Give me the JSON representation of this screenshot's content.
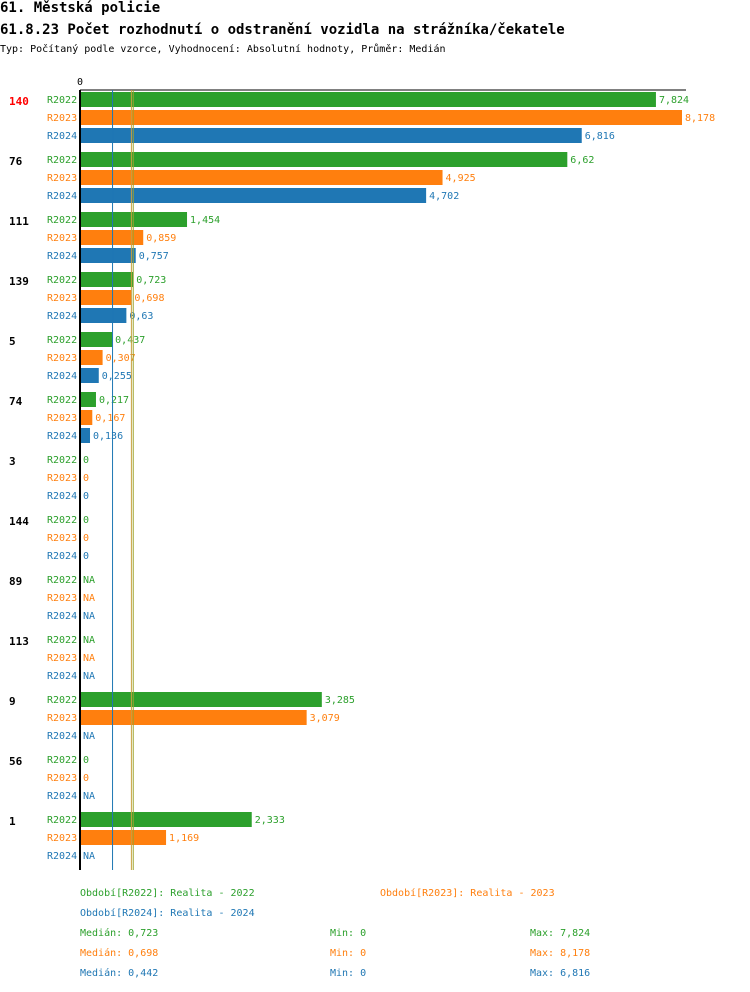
{
  "header": {
    "title": "61. Městská policie",
    "subtitle": "61.8.23 Počet rozhodnutí o odstranění vozidla na strážníka/čekatele",
    "meta": "Typ: Počítaný podle vzorce, Vyhodnocení: Absolutní hodnoty, Průměr: Medián"
  },
  "chart_data": {
    "type": "bar",
    "orientation": "horizontal",
    "xlim": [
      0,
      8.178
    ],
    "axis_zero_label": "0",
    "series": [
      {
        "key": "R2022",
        "label": "R2022",
        "color": "#2ca02c"
      },
      {
        "key": "R2023",
        "label": "R2023",
        "color": "#ff7f0e"
      },
      {
        "key": "R2024",
        "label": "R2024",
        "color": "#1f77b4"
      }
    ],
    "groups": [
      {
        "label": "140",
        "highlight": true,
        "values": [
          7.824,
          8.178,
          6.816
        ],
        "labels": [
          "7,824",
          "8,178",
          "6,816"
        ]
      },
      {
        "label": "76",
        "highlight": false,
        "values": [
          6.62,
          4.925,
          4.702
        ],
        "labels": [
          "6,62",
          "4,925",
          "4,702"
        ]
      },
      {
        "label": "111",
        "highlight": false,
        "values": [
          1.454,
          0.859,
          0.757
        ],
        "labels": [
          "1,454",
          "0,859",
          "0,757"
        ]
      },
      {
        "label": "139",
        "highlight": false,
        "values": [
          0.723,
          0.698,
          0.63
        ],
        "labels": [
          "0,723",
          "0,698",
          "0,63"
        ]
      },
      {
        "label": "5",
        "highlight": false,
        "values": [
          0.437,
          0.307,
          0.255
        ],
        "labels": [
          "0,437",
          "0,307",
          "0,255"
        ]
      },
      {
        "label": "74",
        "highlight": false,
        "values": [
          0.217,
          0.167,
          0.136
        ],
        "labels": [
          "0,217",
          "0,167",
          "0,136"
        ]
      },
      {
        "label": "3",
        "highlight": false,
        "values": [
          0,
          0,
          0
        ],
        "labels": [
          "0",
          "0",
          "0"
        ]
      },
      {
        "label": "144",
        "highlight": false,
        "values": [
          0,
          0,
          0
        ],
        "labels": [
          "0",
          "0",
          "0"
        ]
      },
      {
        "label": "89",
        "highlight": false,
        "values": [
          null,
          null,
          null
        ],
        "labels": [
          "NA",
          "NA",
          "NA"
        ]
      },
      {
        "label": "113",
        "highlight": false,
        "values": [
          null,
          null,
          null
        ],
        "labels": [
          "NA",
          "NA",
          "NA"
        ]
      },
      {
        "label": "9",
        "highlight": false,
        "values": [
          3.285,
          3.079,
          null
        ],
        "labels": [
          "3,285",
          "3,079",
          "NA"
        ]
      },
      {
        "label": "56",
        "highlight": false,
        "values": [
          0,
          0,
          null
        ],
        "labels": [
          "0",
          "0",
          "NA"
        ]
      },
      {
        "label": "1",
        "highlight": false,
        "values": [
          2.333,
          1.169,
          null
        ],
        "labels": [
          "2,333",
          "1,169",
          "NA"
        ]
      }
    ],
    "median_lines": [
      {
        "series": "R2022",
        "value": 0.723
      },
      {
        "series": "R2023",
        "value": 0.698
      },
      {
        "series": "R2024",
        "value": 0.442
      }
    ]
  },
  "legend": {
    "r2022": "Období[R2022]: Realita - 2022",
    "r2023": "Období[R2023]: Realita - 2023",
    "r2024": "Období[R2024]: Realita - 2024"
  },
  "stats": [
    {
      "median": "Medián: 0,723",
      "min": "Min: 0",
      "max": "Max: 7,824"
    },
    {
      "median": "Medián: 0,698",
      "min": "Min: 0",
      "max": "Max: 8,178"
    },
    {
      "median": "Medián: 0,442",
      "min": "Min: 0",
      "max": "Max: 6,816"
    }
  ]
}
